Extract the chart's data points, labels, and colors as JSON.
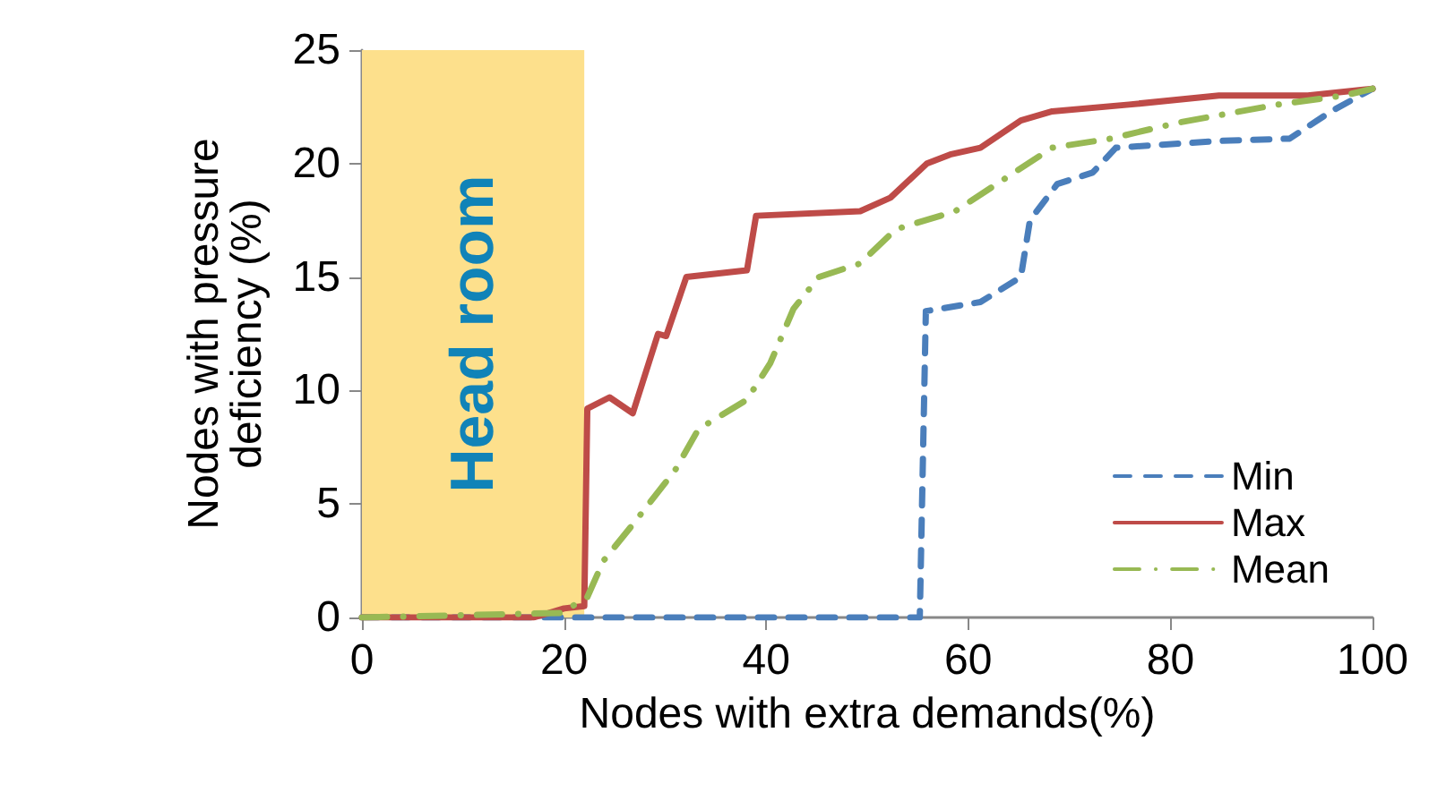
{
  "chart_data": {
    "type": "line",
    "xlabel": "Nodes with extra demands(%)",
    "ylabel": "Nodes with pressure\ndeficiency (%)",
    "xlim": [
      0,
      100
    ],
    "xticks": [
      0,
      20,
      40,
      60,
      80,
      100
    ],
    "ylim": [
      0,
      25
    ],
    "yticks": [
      0,
      5,
      10,
      15,
      20,
      25
    ],
    "grid": false,
    "legend": "bottom right",
    "marker": "none",
    "bands": [
      {
        "axis": "x",
        "from": 0,
        "to": 22,
        "label": "Head room",
        "color": "#fde08c"
      }
    ],
    "series": [
      {
        "name": "Min",
        "color": "#4a7ebb",
        "line_style": "dashed",
        "x": [
          0,
          20,
          22,
          40,
          55.2,
          55.8,
          61.2,
          65.2,
          66.1,
          68.8,
          72.3,
          74.6,
          84.8,
          91.8,
          95.9,
          100
        ],
        "values": [
          0,
          0,
          0,
          0,
          0,
          13.5,
          13.9,
          15.0,
          17.5,
          19.1,
          19.6,
          20.7,
          21.0,
          21.1,
          22.3,
          23.3
        ]
      },
      {
        "name": "Max",
        "color": "#be4b48",
        "line_style": "solid",
        "x": [
          0,
          17,
          20,
          22,
          22.3,
          24.5,
          26.8,
          29.3,
          30.1,
          32.1,
          38.1,
          39,
          49.3,
          52.3,
          55.9,
          58.2,
          61.2,
          65.2,
          68.3,
          75.9,
          84.8,
          93.6,
          100
        ],
        "values": [
          0,
          0,
          0.4,
          0.5,
          9.2,
          9.7,
          9.0,
          12.5,
          12.4,
          15.0,
          15.3,
          17.7,
          17.9,
          18.5,
          20.0,
          20.4,
          20.7,
          21.9,
          22.3,
          22.6,
          23.0,
          23.0,
          23.3
        ]
      },
      {
        "name": "Mean",
        "color": "#98b954",
        "line_style": "dashdot",
        "x": [
          0,
          19.7,
          22.3,
          23.9,
          26.8,
          31,
          33.3,
          38.1,
          40.4,
          42.7,
          45.2,
          49.3,
          52.8,
          58.7,
          63.5,
          68.3,
          74.1,
          80.7,
          90.6,
          97.2,
          100
        ],
        "values": [
          0,
          0.2,
          0.9,
          2.5,
          4.1,
          6.5,
          8.3,
          9.6,
          11.2,
          13.6,
          15.0,
          15.6,
          17.1,
          17.9,
          19.3,
          20.7,
          21.1,
          21.8,
          22.6,
          23.0,
          23.3
        ]
      }
    ]
  }
}
